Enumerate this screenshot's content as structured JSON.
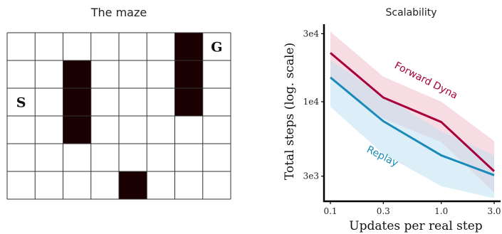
{
  "maze": {
    "title": "The maze",
    "rows": 6,
    "cols": 8,
    "walls": [
      [
        1,
        2
      ],
      [
        2,
        2
      ],
      [
        3,
        2
      ],
      [
        0,
        6
      ],
      [
        1,
        6
      ],
      [
        2,
        6
      ],
      [
        5,
        4
      ]
    ],
    "start": {
      "label": "S",
      "row": 2,
      "col": 0
    },
    "goal": {
      "label": "G",
      "row": 0,
      "col": 7
    },
    "wall_color": "#1a0000",
    "grid_color": "#333333"
  },
  "chart_data": {
    "type": "line",
    "title": "Scalability",
    "xlabel": "Updates per real step",
    "ylabel": "Total steps (log. scale)",
    "x": [
      0.1,
      0.3,
      1.0,
      3.0
    ],
    "xticks": [
      "0.1",
      "0.3",
      "1.0",
      "3.0"
    ],
    "yscale": "log",
    "yticks": [
      {
        "value": 3000,
        "label": "3e3"
      },
      {
        "value": 10000,
        "label": "1e4"
      },
      {
        "value": 30000,
        "label": "3e4"
      }
    ],
    "ylim": [
      2000,
      35000
    ],
    "series": [
      {
        "name": "Forward Dyna",
        "color": "#a8003c",
        "band_color": "#f2c0cc",
        "values": [
          22000,
          10700,
          7200,
          3250
        ],
        "lower": [
          14500,
          7600,
          5200,
          2300
        ],
        "upper": [
          31000,
          15000,
          10000,
          5300
        ]
      },
      {
        "name": "Replay",
        "color": "#1a8ab8",
        "band_color": "#bfe0f0",
        "values": [
          14800,
          7300,
          4200,
          3050
        ],
        "lower": [
          9200,
          4300,
          2550,
          2100
        ],
        "upper": [
          19500,
          11000,
          6200,
          4200
        ]
      }
    ]
  }
}
